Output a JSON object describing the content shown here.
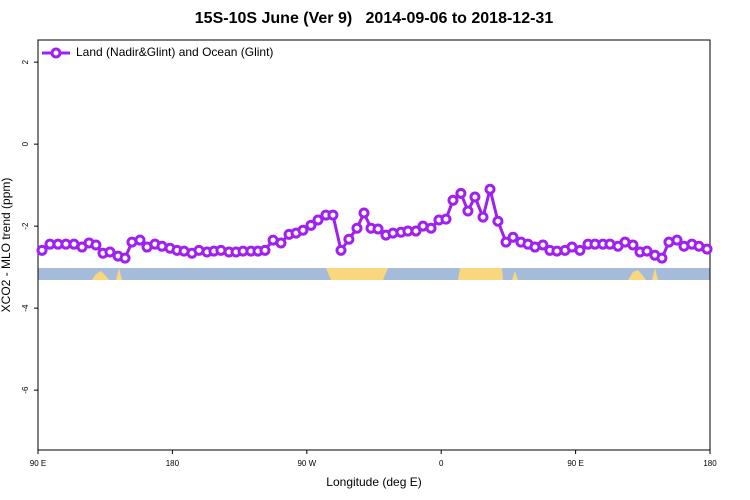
{
  "chart_data": {
    "type": "line",
    "title": "15S-10S June (Ver 9)   2014-09-06 to 2018-12-31",
    "xlabel": "Longitude (deg E)",
    "ylabel": "XCO2 - MLO trend (ppm)",
    "xlim": [
      90,
      540
    ],
    "ylim": [
      -7.46,
      2.54
    ],
    "xticks": [
      {
        "value": 90,
        "label": "90 E"
      },
      {
        "value": 180,
        "label": "180"
      },
      {
        "value": 270,
        "label": "90 W"
      },
      {
        "value": 360,
        "label": "0"
      },
      {
        "value": 450,
        "label": "90 E"
      },
      {
        "value": 540,
        "label": "180"
      }
    ],
    "yticks": [
      2,
      0,
      -2,
      -4,
      -6
    ],
    "legend": "top-left",
    "x": [
      92.7,
      98.0,
      103.4,
      108.7,
      114.1,
      119.5,
      124.2,
      128.8,
      133.5,
      138.2,
      143.6,
      148.3,
      152.9,
      158.3,
      163.0,
      168.3,
      173.0,
      178.4,
      183.1,
      187.8,
      193.1,
      197.8,
      203.2,
      207.8,
      212.5,
      217.9,
      222.6,
      227.3,
      232.6,
      237.3,
      242.0,
      247.4,
      252.7,
      258.1,
      262.8,
      267.4,
      272.8,
      277.5,
      282.8,
      287.5,
      292.9,
      298.2,
      303.6,
      308.3,
      313.0,
      317.7,
      323.0,
      327.7,
      333.1,
      337.7,
      343.1,
      347.8,
      353.2,
      358.5,
      363.2,
      367.9,
      373.2,
      377.9,
      382.6,
      388.0,
      392.7,
      398.0,
      403.4,
      408.1,
      413.4,
      418.1,
      422.8,
      428.1,
      432.8,
      437.5,
      442.9,
      447.6,
      452.9,
      458.3,
      463.0,
      468.3,
      473.0,
      478.4,
      483.1,
      488.4,
      493.1,
      497.8,
      503.1,
      507.8,
      512.5,
      517.9,
      522.6,
      527.9,
      532.6,
      538.0
    ],
    "series": [
      {
        "name": "Land (Nadir&Glint) and Ocean (Glint)",
        "color": "#a020f0",
        "values": [
          -2.59,
          -2.44,
          -2.44,
          -2.44,
          -2.44,
          -2.51,
          -2.41,
          -2.46,
          -2.66,
          -2.63,
          -2.73,
          -2.78,
          -2.39,
          -2.34,
          -2.51,
          -2.44,
          -2.49,
          -2.54,
          -2.59,
          -2.61,
          -2.66,
          -2.59,
          -2.63,
          -2.61,
          -2.59,
          -2.63,
          -2.63,
          -2.61,
          -2.61,
          -2.61,
          -2.59,
          -2.34,
          -2.41,
          -2.2,
          -2.17,
          -2.1,
          -1.98,
          -1.85,
          -1.73,
          -1.73,
          -2.59,
          -2.32,
          -2.05,
          -1.68,
          -2.05,
          -2.07,
          -2.22,
          -2.17,
          -2.15,
          -2.12,
          -2.12,
          -2.0,
          -2.05,
          -1.85,
          -1.83,
          -1.37,
          -1.2,
          -1.63,
          -1.29,
          -1.78,
          -1.1,
          -1.88,
          -2.39,
          -2.27,
          -2.39,
          -2.44,
          -2.51,
          -2.46,
          -2.59,
          -2.61,
          -2.59,
          -2.51,
          -2.59,
          -2.44,
          -2.44,
          -2.44,
          -2.44,
          -2.49,
          -2.39,
          -2.46,
          -2.63,
          -2.61,
          -2.71,
          -2.78,
          -2.39,
          -2.34,
          -2.49,
          -2.44,
          -2.49,
          -2.56
        ]
      }
    ]
  }
}
